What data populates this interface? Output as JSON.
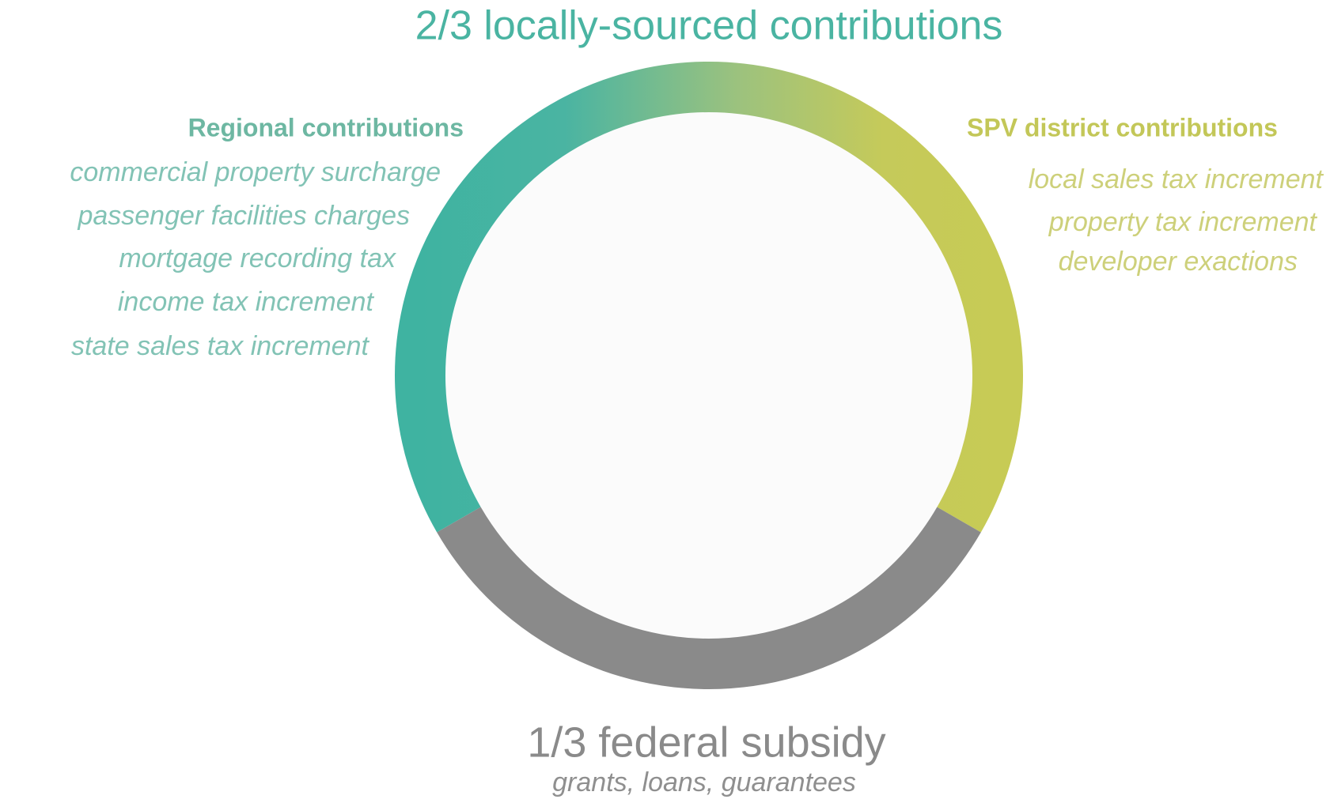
{
  "title": "2/3 locally-sourced contributions",
  "left": {
    "heading": "Regional contributions",
    "items": [
      "commercial property surcharge",
      "passenger facilities charges",
      "mortgage recording tax",
      "income tax increment",
      "state sales tax increment"
    ]
  },
  "right": {
    "heading": "SPV district contributions",
    "items": [
      "local sales tax increment",
      "property tax increment",
      "developer exactions"
    ]
  },
  "bottom": {
    "title": "1/3 federal subsidy",
    "subtitle": "grants, loans, guarantees"
  }
}
